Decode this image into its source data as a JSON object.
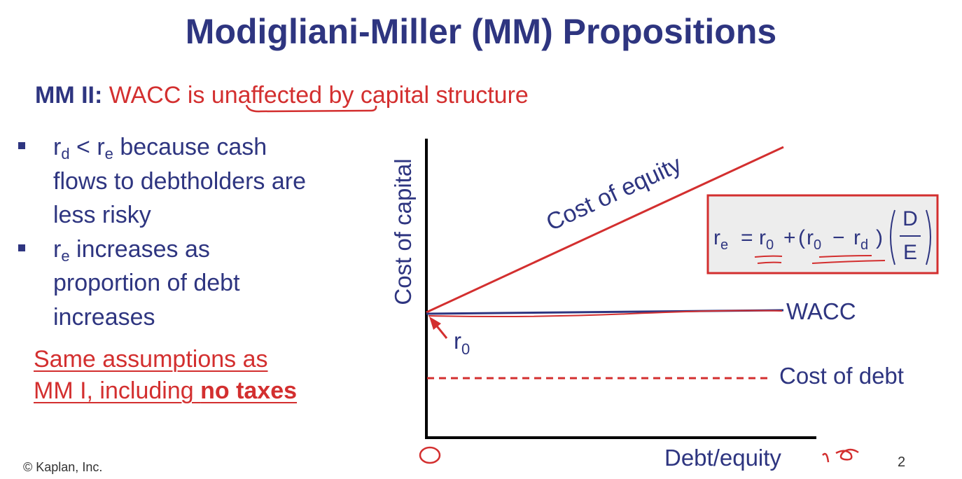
{
  "title": "Modigliani-Miller (MM) Propositions",
  "subtitle": {
    "prefix": "MM II:",
    "text_before": "WACC is ",
    "emphasis": "unaffected",
    "text_after": " by capital structure"
  },
  "bullets": {
    "b1": {
      "r": "r",
      "sub_d": "d",
      "lt": " < ",
      "sub_e": "e",
      "line1_tail": " because cash",
      "line2": "flows to debtholders are",
      "line3": "less risky"
    },
    "b2": {
      "r": "r",
      "sub_e": "e",
      "line1_tail": " increases as",
      "line2": "proportion of debt",
      "line3": "increases"
    }
  },
  "note": {
    "line1": "Same assumptions as",
    "line2_prefix": "MM I, including ",
    "line2_bold": "no taxes"
  },
  "chart": {
    "ylabel": "Cost of capital",
    "xlabel": "Debt/equity",
    "equity_label": "Cost of equity",
    "wacc_label": "WACC",
    "debt_label": "Cost of debt",
    "r0_label": "r",
    "r0_sub": "0",
    "formula": {
      "lhs": "r",
      "lhs_sub": "e",
      "eq": " = ",
      "r0": "r",
      "r0_sub": "0",
      "plus": " + (",
      "r0b": "r",
      "r0b_sub": "0",
      "minus": " − ",
      "rd": "r",
      "rd_sub": "d",
      "close": ")",
      "num": "D",
      "den": "E"
    }
  },
  "chart_data": {
    "type": "line",
    "xlabel": "Debt/equity",
    "ylabel": "Cost of capital",
    "series": [
      {
        "name": "Cost of equity",
        "style": "solid",
        "color": "#d32f2f",
        "points": [
          [
            0,
            0.44
          ],
          [
            1,
            0.92
          ]
        ]
      },
      {
        "name": "WACC",
        "style": "solid",
        "color": "#2e3580",
        "points": [
          [
            0,
            0.44
          ],
          [
            1,
            0.44
          ]
        ]
      },
      {
        "name": "Cost of debt",
        "style": "dashed",
        "color": "#d32f2f",
        "points": [
          [
            0,
            0.2
          ],
          [
            1,
            0.2
          ]
        ]
      }
    ],
    "annotations": [
      "r0"
    ]
  },
  "footer": {
    "copyright": "© Kaplan, Inc.",
    "page": "2"
  },
  "colors": {
    "navy": "#2e3580",
    "red": "#d32f2f",
    "box_fill": "#ededed"
  }
}
